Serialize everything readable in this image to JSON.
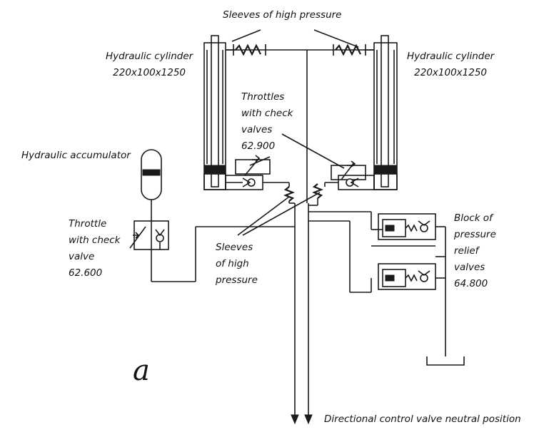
{
  "labels": {
    "sleeves_top": "Sleeves of high pressure",
    "cylinder_left": "Hydraulic cylinder\n220x100x1250",
    "cylinder_right": "Hydraulic cylinder\n220x100x1250",
    "throttles": "Throttles\nwith check\nvalves\n62.900",
    "accumulator": "Hydraulic accumulator",
    "throttle_single": "Throttle\nwith check\nvalve\n62.600",
    "sleeves_mid": "Sleeves\nof high\npressure",
    "relief_block": "Block of\npressure\nrelief\nvalves\n64.800",
    "fig_letter": "a",
    "control_valve": "Directional control valve neutral position"
  },
  "colors": {
    "line": "#1a1a1a",
    "background": "#ffffff"
  }
}
